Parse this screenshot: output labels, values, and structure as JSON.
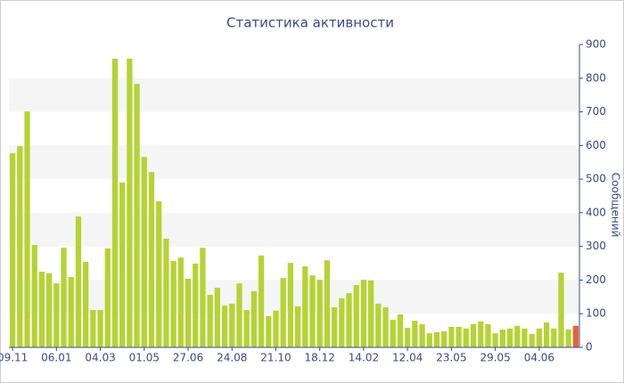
{
  "chart_data": {
    "type": "bar",
    "title": "Статистика активности",
    "y_label": "Сообщений",
    "categories": [
      "09.11",
      null,
      null,
      null,
      null,
      null,
      "06.01",
      null,
      null,
      null,
      null,
      null,
      "04.03",
      null,
      null,
      null,
      null,
      null,
      "01.05",
      null,
      null,
      null,
      null,
      null,
      "27.06",
      null,
      null,
      null,
      null,
      null,
      "24.08",
      null,
      null,
      null,
      null,
      null,
      "21.10",
      null,
      null,
      null,
      null,
      null,
      "18.12",
      null,
      null,
      null,
      null,
      null,
      "14.02",
      null,
      null,
      null,
      null,
      null,
      "12.04",
      null,
      null,
      null,
      null,
      null,
      "23.05",
      null,
      null,
      null,
      null,
      null,
      "29.05",
      null,
      null,
      null,
      null,
      null,
      "04.06",
      null,
      null,
      null,
      null,
      null
    ],
    "values": [
      577,
      598,
      701,
      304,
      225,
      220,
      190,
      296,
      209,
      389,
      254,
      111,
      111,
      294,
      858,
      490,
      858,
      783,
      566,
      521,
      434,
      323,
      257,
      267,
      204,
      249,
      296,
      156,
      177,
      124,
      130,
      190,
      111,
      167,
      273,
      93,
      109,
      206,
      251,
      122,
      241,
      214,
      201,
      259,
      119,
      146,
      161,
      185,
      201,
      199,
      130,
      119,
      82,
      98,
      58,
      79,
      69,
      42,
      45,
      48,
      61,
      61,
      56,
      69,
      77,
      69,
      42,
      53,
      56,
      64,
      56,
      40,
      56,
      74,
      56,
      222,
      53,
      64
    ],
    "color": "#b5d334",
    "last_color": "#e8623a",
    "ylim": [
      0,
      900
    ],
    "yticks": [
      0,
      100,
      200,
      300,
      400,
      500,
      600,
      700,
      800,
      900
    ],
    "grid": "bands",
    "y_axis_side": "right"
  }
}
